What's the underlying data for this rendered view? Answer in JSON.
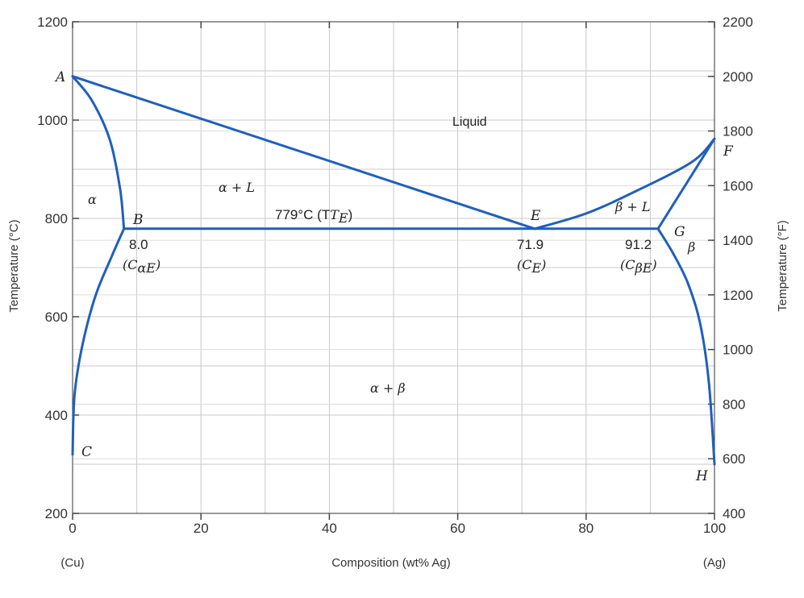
{
  "chart_data": {
    "type": "line",
    "title": "",
    "xlabel": "Composition (wt% Ag)",
    "ylabel": "Temperature (°C)",
    "ylabel_right": "Temperature (°F)",
    "x_end_labels": {
      "left": "(Cu)",
      "right": "(Ag)"
    },
    "xlim": [
      0,
      100
    ],
    "ylim": [
      200,
      1200
    ],
    "ylim_right": [
      400,
      2200
    ],
    "x_ticks": [
      0,
      20,
      40,
      60,
      80,
      100
    ],
    "y_ticks": [
      200,
      400,
      600,
      800,
      1000,
      1200
    ],
    "y_ticks_right": [
      400,
      600,
      800,
      1000,
      1200,
      1400,
      1600,
      1800,
      2000,
      2200
    ],
    "grid": true,
    "line_color": "#1f5fbf",
    "series": [
      {
        "id": "liquidus_alpha",
        "x": [
          0,
          72
        ],
        "y": [
          1089,
          779
        ]
      },
      {
        "id": "liquidus_beta",
        "x": [
          72,
          80,
          88,
          96.5,
          100
        ],
        "y": [
          779,
          810,
          857,
          915,
          962
        ]
      },
      {
        "id": "solidus_alpha",
        "x": [
          0,
          3,
          5.8,
          7.4,
          8.0
        ],
        "y": [
          1089,
          1040,
          960,
          860,
          779
        ]
      },
      {
        "id": "solidus_beta",
        "x": [
          91.2,
          100
        ],
        "y": [
          779,
          962
        ]
      },
      {
        "id": "eutectic_isotherm",
        "x": [
          8.0,
          91.2
        ],
        "y": [
          779,
          779
        ]
      },
      {
        "id": "solvus_alpha",
        "x": [
          8.0,
          6.0,
          3.5,
          1.5,
          0.3,
          0
        ],
        "y": [
          779,
          720,
          640,
          540,
          440,
          320
        ]
      },
      {
        "id": "solvus_beta",
        "x": [
          91.2,
          93.5,
          95.8,
          97.7,
          99.1,
          100
        ],
        "y": [
          779,
          730,
          670,
          590,
          470,
          300
        ]
      }
    ],
    "points": [
      {
        "name": "A",
        "x": 0,
        "y": 1089
      },
      {
        "name": "B",
        "x": 8.0,
        "y": 779
      },
      {
        "name": "C",
        "x": 0,
        "y": 320
      },
      {
        "name": "E",
        "x": 71.9,
        "y": 779
      },
      {
        "name": "F",
        "x": 100,
        "y": 962
      },
      {
        "name": "G",
        "x": 91.2,
        "y": 779
      },
      {
        "name": "H",
        "x": 100,
        "y": 300
      }
    ],
    "annotations": {
      "liquid": "Liquid",
      "alpha": "α",
      "alpha_plus_l": "α + L",
      "beta_plus_l": "β + L",
      "beta": "β",
      "alpha_plus_beta": "α + β",
      "eutectic_temp": "779°C (T",
      "eutectic_temp_sub": "E",
      "eutectic_temp_close": ")",
      "b_value": "8.0",
      "b_comp": "(C",
      "b_comp_sub": "αE",
      "b_comp_close": ")",
      "e_value": "71.9",
      "e_comp": "(C",
      "e_comp_sub": "E",
      "e_comp_close": ")",
      "g_value": "91.2",
      "g_comp": "(C",
      "g_comp_sub": "βE",
      "g_comp_close": ")"
    }
  }
}
